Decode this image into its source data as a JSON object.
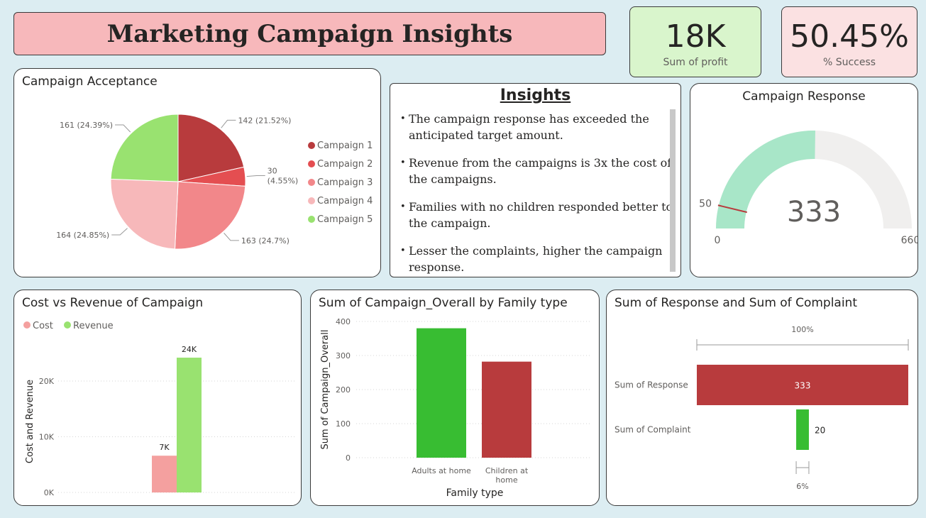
{
  "header": {
    "title": "Marketing Campaign Insights"
  },
  "kpis": {
    "profit": {
      "value": "18K",
      "label": "Sum of profit",
      "bg": "#d9f5cc"
    },
    "success": {
      "value": "50.45%",
      "label": "% Success",
      "bg": "#fbe1e2"
    }
  },
  "acceptance": {
    "title": "Campaign Acceptance",
    "chart_data": {
      "type": "pie",
      "slices": [
        {
          "name": "Campaign 1",
          "value": 142,
          "label": "142 (21.52%)",
          "color": "#b83b3d"
        },
        {
          "name": "Campaign 2",
          "value": 30,
          "label": "30 (4.55%)",
          "color": "#e44e51"
        },
        {
          "name": "Campaign 3",
          "value": 163,
          "label": "163 (24.7%)",
          "color": "#f2878a"
        },
        {
          "name": "Campaign 4",
          "value": 164,
          "label": "164 (24.85%)",
          "color": "#f7b8ba"
        },
        {
          "name": "Campaign 5",
          "value": 161,
          "label": "161 (24.39%)",
          "color": "#99e270"
        }
      ],
      "legend_position": "right"
    }
  },
  "insights": {
    "title": "Insights",
    "items": [
      "The campaign response has exceeded the anticipated target amount.",
      "Revenue from the campaigns is 3x the cost of the campaigns.",
      "Families with no children responded better to the campaign.",
      "Lesser the complaints, higher the campaign response."
    ]
  },
  "response_gauge": {
    "title": "Campaign Response",
    "chart_data": {
      "type": "gauge",
      "value": 333,
      "value_label": "333",
      "min": 0,
      "min_label": "0",
      "max": 660,
      "max_label": "660",
      "target": 50,
      "target_label": "50",
      "fill_color": "#a8e6c8",
      "track_color": "#f0efee",
      "target_color": "#b83b3d"
    }
  },
  "cost_revenue": {
    "title": "Cost vs Revenue of Campaign",
    "chart_data": {
      "type": "bar",
      "ylabel": "Cost and Revenue",
      "ylim": [
        0,
        25000
      ],
      "yticks": [
        {
          "v": 0,
          "label": "0K"
        },
        {
          "v": 10000,
          "label": "10K"
        },
        {
          "v": 20000,
          "label": "20K"
        }
      ],
      "series": [
        {
          "name": "Cost",
          "value": 6600,
          "label": "7K",
          "color": "#f4a09f"
        },
        {
          "name": "Revenue",
          "value": 24200,
          "label": "24K",
          "color": "#99e270"
        }
      ],
      "legend_position": "top-left"
    }
  },
  "family_type": {
    "title": "Sum of Campaign_Overall by Family type",
    "chart_data": {
      "type": "bar",
      "xlabel": "Family type",
      "ylabel": "Sum of Campaign_Overall",
      "ylim": [
        0,
        400
      ],
      "yticks": [
        0,
        100,
        200,
        300,
        400
      ],
      "categories": [
        {
          "name": "Adults at home",
          "lines": [
            "Adults at home"
          ],
          "value": 380,
          "color": "#38bd32"
        },
        {
          "name": "Children at home",
          "lines": [
            "Children at",
            "home"
          ],
          "value": 282,
          "color": "#b83b3d"
        }
      ]
    }
  },
  "funnel": {
    "title": "Sum of Response and Sum of Complaint",
    "chart_data": {
      "type": "funnel",
      "top_label": "100%",
      "bottom_label": "6%",
      "stages": [
        {
          "name": "Sum of Response",
          "value": 333,
          "label": "333",
          "color": "#b83b3d"
        },
        {
          "name": "Sum of Complaint",
          "value": 20,
          "label": "20",
          "color": "#38bd32"
        }
      ]
    }
  }
}
